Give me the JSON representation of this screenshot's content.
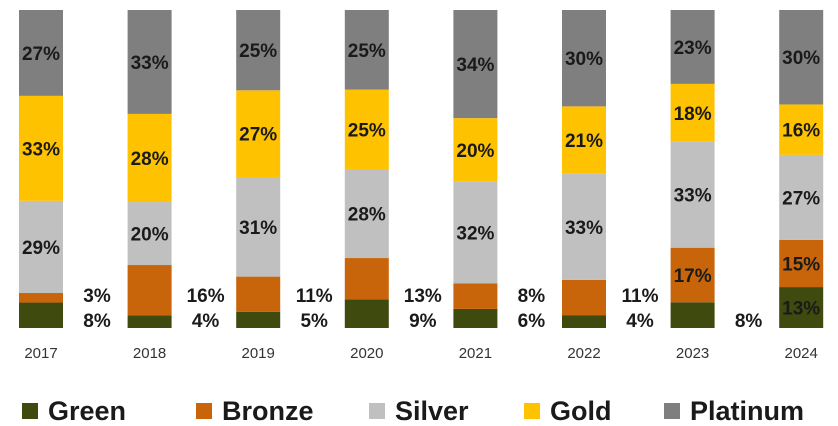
{
  "chart_data": {
    "type": "bar",
    "stacked": true,
    "normalized": true,
    "categories": [
      "2017",
      "2018",
      "2019",
      "2020",
      "2021",
      "2022",
      "2023",
      "2024"
    ],
    "series": [
      {
        "name": "Green",
        "color": "#3e4a0e",
        "values": [
          8,
          4,
          5,
          9,
          6,
          4,
          8,
          13
        ]
      },
      {
        "name": "Bronze",
        "color": "#c8650a",
        "values": [
          3,
          16,
          11,
          13,
          8,
          11,
          17,
          15
        ]
      },
      {
        "name": "Silver",
        "color": "#c0c0c0",
        "values": [
          29,
          20,
          31,
          28,
          32,
          33,
          33,
          27
        ]
      },
      {
        "name": "Gold",
        "color": "#fec200",
        "values": [
          33,
          28,
          27,
          25,
          20,
          21,
          18,
          16
        ]
      },
      {
        "name": "Platinum",
        "color": "#7f7f7f",
        "values": [
          27,
          33,
          25,
          25,
          34,
          30,
          23,
          30
        ]
      }
    ],
    "labels_inside": {
      "Silver": [
        "29%",
        "20%",
        "31%",
        "28%",
        "32%",
        "33%",
        "33%",
        "27%"
      ],
      "Gold": [
        "33%",
        "28%",
        "27%",
        "25%",
        "20%",
        "21%",
        "18%",
        "16%"
      ],
      "Platinum": [
        "27%",
        "33%",
        "25%",
        "25%",
        "34%",
        "30%",
        "23%",
        "30%"
      ],
      "Bronze": [
        "",
        "",
        "",
        "",
        "",
        "",
        "17%",
        "15%"
      ],
      "Green": [
        "",
        "",
        "",
        "",
        "",
        "",
        "",
        "13%"
      ]
    },
    "labels_outside_bronze": [
      "3%",
      "16%",
      "11%",
      "13%",
      "8%",
      "11%",
      "",
      ""
    ],
    "labels_outside_green": [
      "8%",
      "4%",
      "5%",
      "9%",
      "6%",
      "4%",
      "8%",
      ""
    ],
    "legend": {
      "position": "bottom",
      "items": [
        "Green",
        "Bronze",
        "Silver",
        "Gold",
        "Platinum"
      ]
    },
    "grid": false,
    "ylim": [
      0,
      100
    ]
  }
}
